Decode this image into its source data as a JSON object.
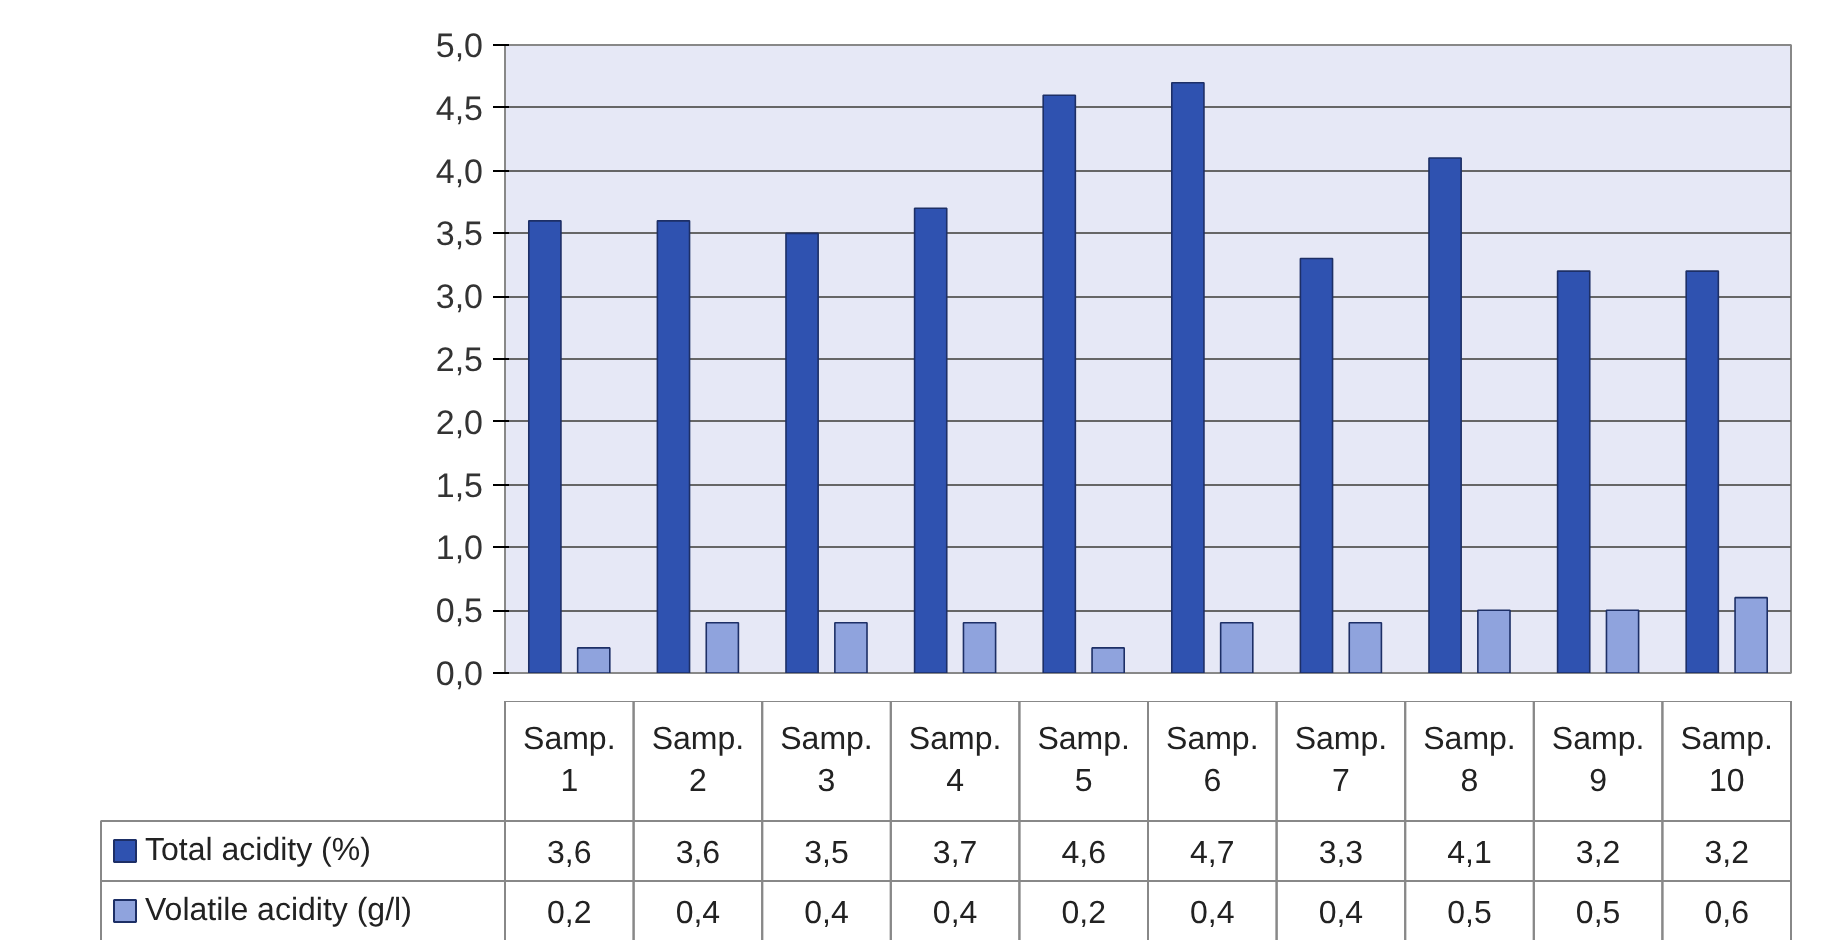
{
  "chart_data": {
    "type": "bar",
    "categories": [
      "Samp. 1",
      "Samp. 2",
      "Samp. 3",
      "Samp. 4",
      "Samp. 5",
      "Samp. 6",
      "Samp. 7",
      "Samp. 8",
      "Samp. 9",
      "Samp. 10"
    ],
    "series": [
      {
        "name": "Total acidity (%)",
        "color": "#2f52b0",
        "values": [
          3.6,
          3.6,
          3.5,
          3.7,
          4.6,
          4.7,
          3.3,
          4.1,
          3.2,
          3.2
        ],
        "value_labels": [
          "3,6",
          "3,6",
          "3,5",
          "3,7",
          "4,6",
          "4,7",
          "3,3",
          "4,1",
          "3,2",
          "3,2"
        ]
      },
      {
        "name": "Volatile acidity (g/l)",
        "color": "#8fa3dd",
        "values": [
          0.2,
          0.4,
          0.4,
          0.4,
          0.2,
          0.4,
          0.4,
          0.5,
          0.5,
          0.6
        ],
        "value_labels": [
          "0,2",
          "0,4",
          "0,4",
          "0,4",
          "0,2",
          "0,4",
          "0,4",
          "0,5",
          "0,5",
          "0,6"
        ]
      }
    ],
    "ylim": [
      0,
      5
    ],
    "yticks": [
      {
        "value": 0,
        "label": "0,0"
      },
      {
        "value": 0.5,
        "label": "0,5"
      },
      {
        "value": 1,
        "label": "1,0"
      },
      {
        "value": 1.5,
        "label": "1,5"
      },
      {
        "value": 2,
        "label": "2,0"
      },
      {
        "value": 2.5,
        "label": "2,5"
      },
      {
        "value": 3,
        "label": "3,0"
      },
      {
        "value": 3.5,
        "label": "3,5"
      },
      {
        "value": 4,
        "label": "4,0"
      },
      {
        "value": 4.5,
        "label": "4,5"
      },
      {
        "value": 5,
        "label": "5,0"
      }
    ],
    "grid": "y",
    "legend": "bottom"
  }
}
